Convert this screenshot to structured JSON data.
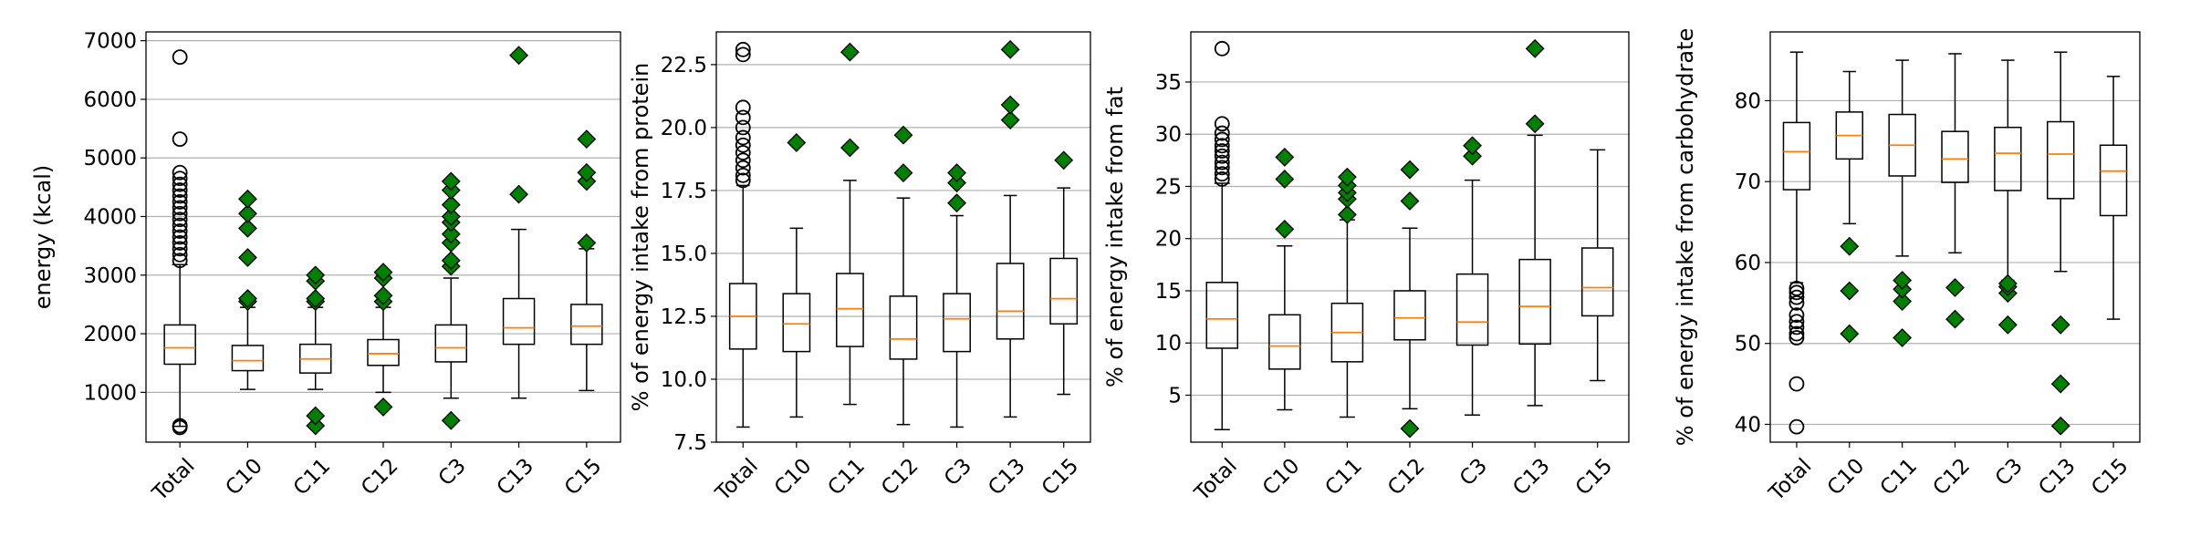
{
  "chart_data": [
    {
      "type": "box",
      "ylabel": "energy (kcal)",
      "categories": [
        "Total",
        "C10",
        "C11",
        "C12",
        "C3",
        "C13",
        "C15"
      ],
      "ylim": [
        150,
        7150
      ],
      "yticks": [
        1000,
        2000,
        3000,
        4000,
        5000,
        6000,
        7000
      ],
      "yticklabels": [
        "1000",
        "2000",
        "3000",
        "4000",
        "5000",
        "6000",
        "7000"
      ],
      "grid": true,
      "first_category_outliers": "circle",
      "boxes": [
        {
          "category": "Total",
          "whislo": 420,
          "q1": 1480,
          "med": 1760,
          "q3": 2150,
          "whishi": 3180,
          "fliers": [
            400,
            430,
            3250,
            3350,
            3450,
            3550,
            3650,
            3750,
            3850,
            3950,
            4050,
            4150,
            4250,
            4350,
            4450,
            4550,
            4650,
            4750,
            5320,
            6720
          ]
        },
        {
          "category": "C10",
          "whislo": 1050,
          "q1": 1370,
          "med": 1540,
          "q3": 1800,
          "whishi": 2450,
          "fliers": [
            2550,
            2600,
            3300,
            3800,
            4050,
            4300
          ]
        },
        {
          "category": "C11",
          "whislo": 1050,
          "q1": 1330,
          "med": 1570,
          "q3": 1820,
          "whishi": 2450,
          "fliers": [
            430,
            600,
            2550,
            2600,
            2900,
            3000
          ]
        },
        {
          "category": "C12",
          "whislo": 1000,
          "q1": 1460,
          "med": 1660,
          "q3": 1900,
          "whishi": 2450,
          "fliers": [
            750,
            2550,
            2650,
            2950,
            3050
          ]
        },
        {
          "category": "C3",
          "whislo": 900,
          "q1": 1520,
          "med": 1760,
          "q3": 2150,
          "whishi": 2950,
          "fliers": [
            520,
            3150,
            3250,
            3550,
            3700,
            3900,
            4000,
            4200,
            4450,
            4600
          ]
        },
        {
          "category": "C13",
          "whislo": 900,
          "q1": 1820,
          "med": 2100,
          "q3": 2600,
          "whishi": 3780,
          "fliers": [
            4380,
            6750
          ]
        },
        {
          "category": "C15",
          "whislo": 1030,
          "q1": 1820,
          "med": 2130,
          "q3": 2500,
          "whishi": 3450,
          "fliers": [
            3550,
            4600,
            4750,
            5320
          ]
        }
      ]
    },
    {
      "type": "box",
      "ylabel": "% of energy intake from protein",
      "categories": [
        "Total",
        "C10",
        "C11",
        "C12",
        "C3",
        "C13",
        "C15"
      ],
      "ylim": [
        7.5,
        23.8
      ],
      "yticks": [
        7.5,
        10.0,
        12.5,
        15.0,
        17.5,
        20.0,
        22.5
      ],
      "yticklabels": [
        "7.5",
        "10.0",
        "12.5",
        "15.0",
        "17.5",
        "20.0",
        "22.5"
      ],
      "grid": true,
      "first_category_outliers": "circle",
      "boxes": [
        {
          "category": "Total",
          "whislo": 8.1,
          "q1": 11.2,
          "med": 12.5,
          "q3": 13.8,
          "whishi": 17.7,
          "fliers": [
            17.9,
            18.1,
            18.4,
            18.7,
            19.0,
            19.3,
            19.6,
            20.0,
            20.4,
            20.8,
            22.9,
            23.1
          ]
        },
        {
          "category": "C10",
          "whislo": 8.5,
          "q1": 11.1,
          "med": 12.2,
          "q3": 13.4,
          "whishi": 16.0,
          "fliers": [
            19.4
          ]
        },
        {
          "category": "C11",
          "whislo": 9.0,
          "q1": 11.3,
          "med": 12.8,
          "q3": 14.2,
          "whishi": 17.9,
          "fliers": [
            19.2,
            23.0
          ]
        },
        {
          "category": "C12",
          "whislo": 8.2,
          "q1": 10.8,
          "med": 11.6,
          "q3": 13.3,
          "whishi": 17.2,
          "fliers": [
            18.2,
            19.7
          ]
        },
        {
          "category": "C3",
          "whislo": 8.1,
          "q1": 11.1,
          "med": 12.4,
          "q3": 13.4,
          "whishi": 16.5,
          "fliers": [
            17.0,
            17.8,
            18.2
          ]
        },
        {
          "category": "C13",
          "whislo": 8.5,
          "q1": 11.6,
          "med": 12.7,
          "q3": 14.6,
          "whishi": 17.3,
          "fliers": [
            20.3,
            20.9,
            23.1
          ]
        },
        {
          "category": "C15",
          "whislo": 9.4,
          "q1": 12.2,
          "med": 13.2,
          "q3": 14.8,
          "whishi": 17.6,
          "fliers": [
            18.7
          ]
        }
      ]
    },
    {
      "type": "box",
      "ylabel": "% of energy intake from fat",
      "categories": [
        "Total",
        "C10",
        "C11",
        "C12",
        "C3",
        "C13",
        "C15"
      ],
      "ylim": [
        0.5,
        39.8
      ],
      "yticks": [
        5,
        10,
        15,
        20,
        25,
        30,
        35
      ],
      "yticklabels": [
        "5",
        "10",
        "15",
        "20",
        "25",
        "30",
        "35"
      ],
      "grid": true,
      "first_category_outliers": "circle",
      "boxes": [
        {
          "category": "Total",
          "whislo": 1.7,
          "q1": 9.5,
          "med": 12.3,
          "q3": 15.8,
          "whishi": 25.3,
          "fliers": [
            25.7,
            26.2,
            26.8,
            27.3,
            27.9,
            28.4,
            28.9,
            29.5,
            30.1,
            31.0,
            38.2
          ]
        },
        {
          "category": "C10",
          "whislo": 3.6,
          "q1": 7.5,
          "med": 9.7,
          "q3": 12.7,
          "whishi": 19.3,
          "fliers": [
            20.9,
            25.7,
            27.8
          ]
        },
        {
          "category": "C11",
          "whislo": 2.9,
          "q1": 8.2,
          "med": 11.0,
          "q3": 13.8,
          "whishi": 21.8,
          "fliers": [
            22.3,
            23.8,
            24.4,
            25.1,
            25.9
          ]
        },
        {
          "category": "C12",
          "whislo": 3.7,
          "q1": 10.3,
          "med": 12.4,
          "q3": 15.0,
          "whishi": 21.0,
          "fliers": [
            1.8,
            23.6,
            26.6
          ]
        },
        {
          "category": "C3",
          "whislo": 3.1,
          "q1": 9.8,
          "med": 12.0,
          "q3": 16.6,
          "whishi": 25.6,
          "fliers": [
            27.9,
            28.9
          ]
        },
        {
          "category": "C13",
          "whislo": 4.0,
          "q1": 9.9,
          "med": 13.5,
          "q3": 18.0,
          "whishi": 29.9,
          "fliers": [
            31.0,
            38.2
          ]
        },
        {
          "category": "C15",
          "whislo": 6.4,
          "q1": 12.6,
          "med": 15.3,
          "q3": 19.1,
          "whishi": 28.5,
          "fliers": []
        }
      ]
    },
    {
      "type": "box",
      "ylabel": "% of energy intake from carbohydrate",
      "categories": [
        "Total",
        "C10",
        "C11",
        "C12",
        "C3",
        "C13",
        "C15"
      ],
      "ylim": [
        37.8,
        88.5
      ],
      "yticks": [
        40,
        50,
        60,
        70,
        80
      ],
      "yticklabels": [
        "40",
        "50",
        "60",
        "70",
        "80"
      ],
      "grid": true,
      "first_category_outliers": "circle",
      "boxes": [
        {
          "category": "Total",
          "whislo": 57.5,
          "q1": 69.0,
          "med": 73.7,
          "q3": 77.3,
          "whishi": 86.0,
          "fliers": [
            39.7,
            45.0,
            50.7,
            51.2,
            52.0,
            52.7,
            53.5,
            55.0,
            55.7,
            56.3,
            56.8
          ]
        },
        {
          "category": "C10",
          "whislo": 64.8,
          "q1": 72.8,
          "med": 75.7,
          "q3": 78.6,
          "whishi": 83.6,
          "fliers": [
            51.2,
            56.5,
            62.0
          ]
        },
        {
          "category": "C11",
          "whislo": 60.8,
          "q1": 70.7,
          "med": 74.5,
          "q3": 78.3,
          "whishi": 85.0,
          "fliers": [
            50.7,
            55.2,
            56.7,
            57.8
          ]
        },
        {
          "category": "C12",
          "whislo": 61.2,
          "q1": 69.9,
          "med": 72.8,
          "q3": 76.2,
          "whishi": 85.8,
          "fliers": [
            53.0,
            56.9
          ]
        },
        {
          "category": "C3",
          "whislo": 57.8,
          "q1": 68.9,
          "med": 73.5,
          "q3": 76.7,
          "whishi": 85.0,
          "fliers": [
            52.3,
            56.2,
            57.0,
            57.4
          ]
        },
        {
          "category": "C13",
          "whislo": 58.9,
          "q1": 67.9,
          "med": 73.4,
          "q3": 77.4,
          "whishi": 86.0,
          "fliers": [
            39.8,
            45.0,
            52.3
          ]
        },
        {
          "category": "C15",
          "whislo": 53.0,
          "q1": 65.8,
          "med": 71.3,
          "q3": 74.5,
          "whishi": 83.0,
          "fliers": []
        }
      ]
    }
  ],
  "colors": {
    "median": "#ff7f0e",
    "flier_fill": "#008000",
    "grid": "#b0b0b0",
    "axis": "#000000"
  }
}
